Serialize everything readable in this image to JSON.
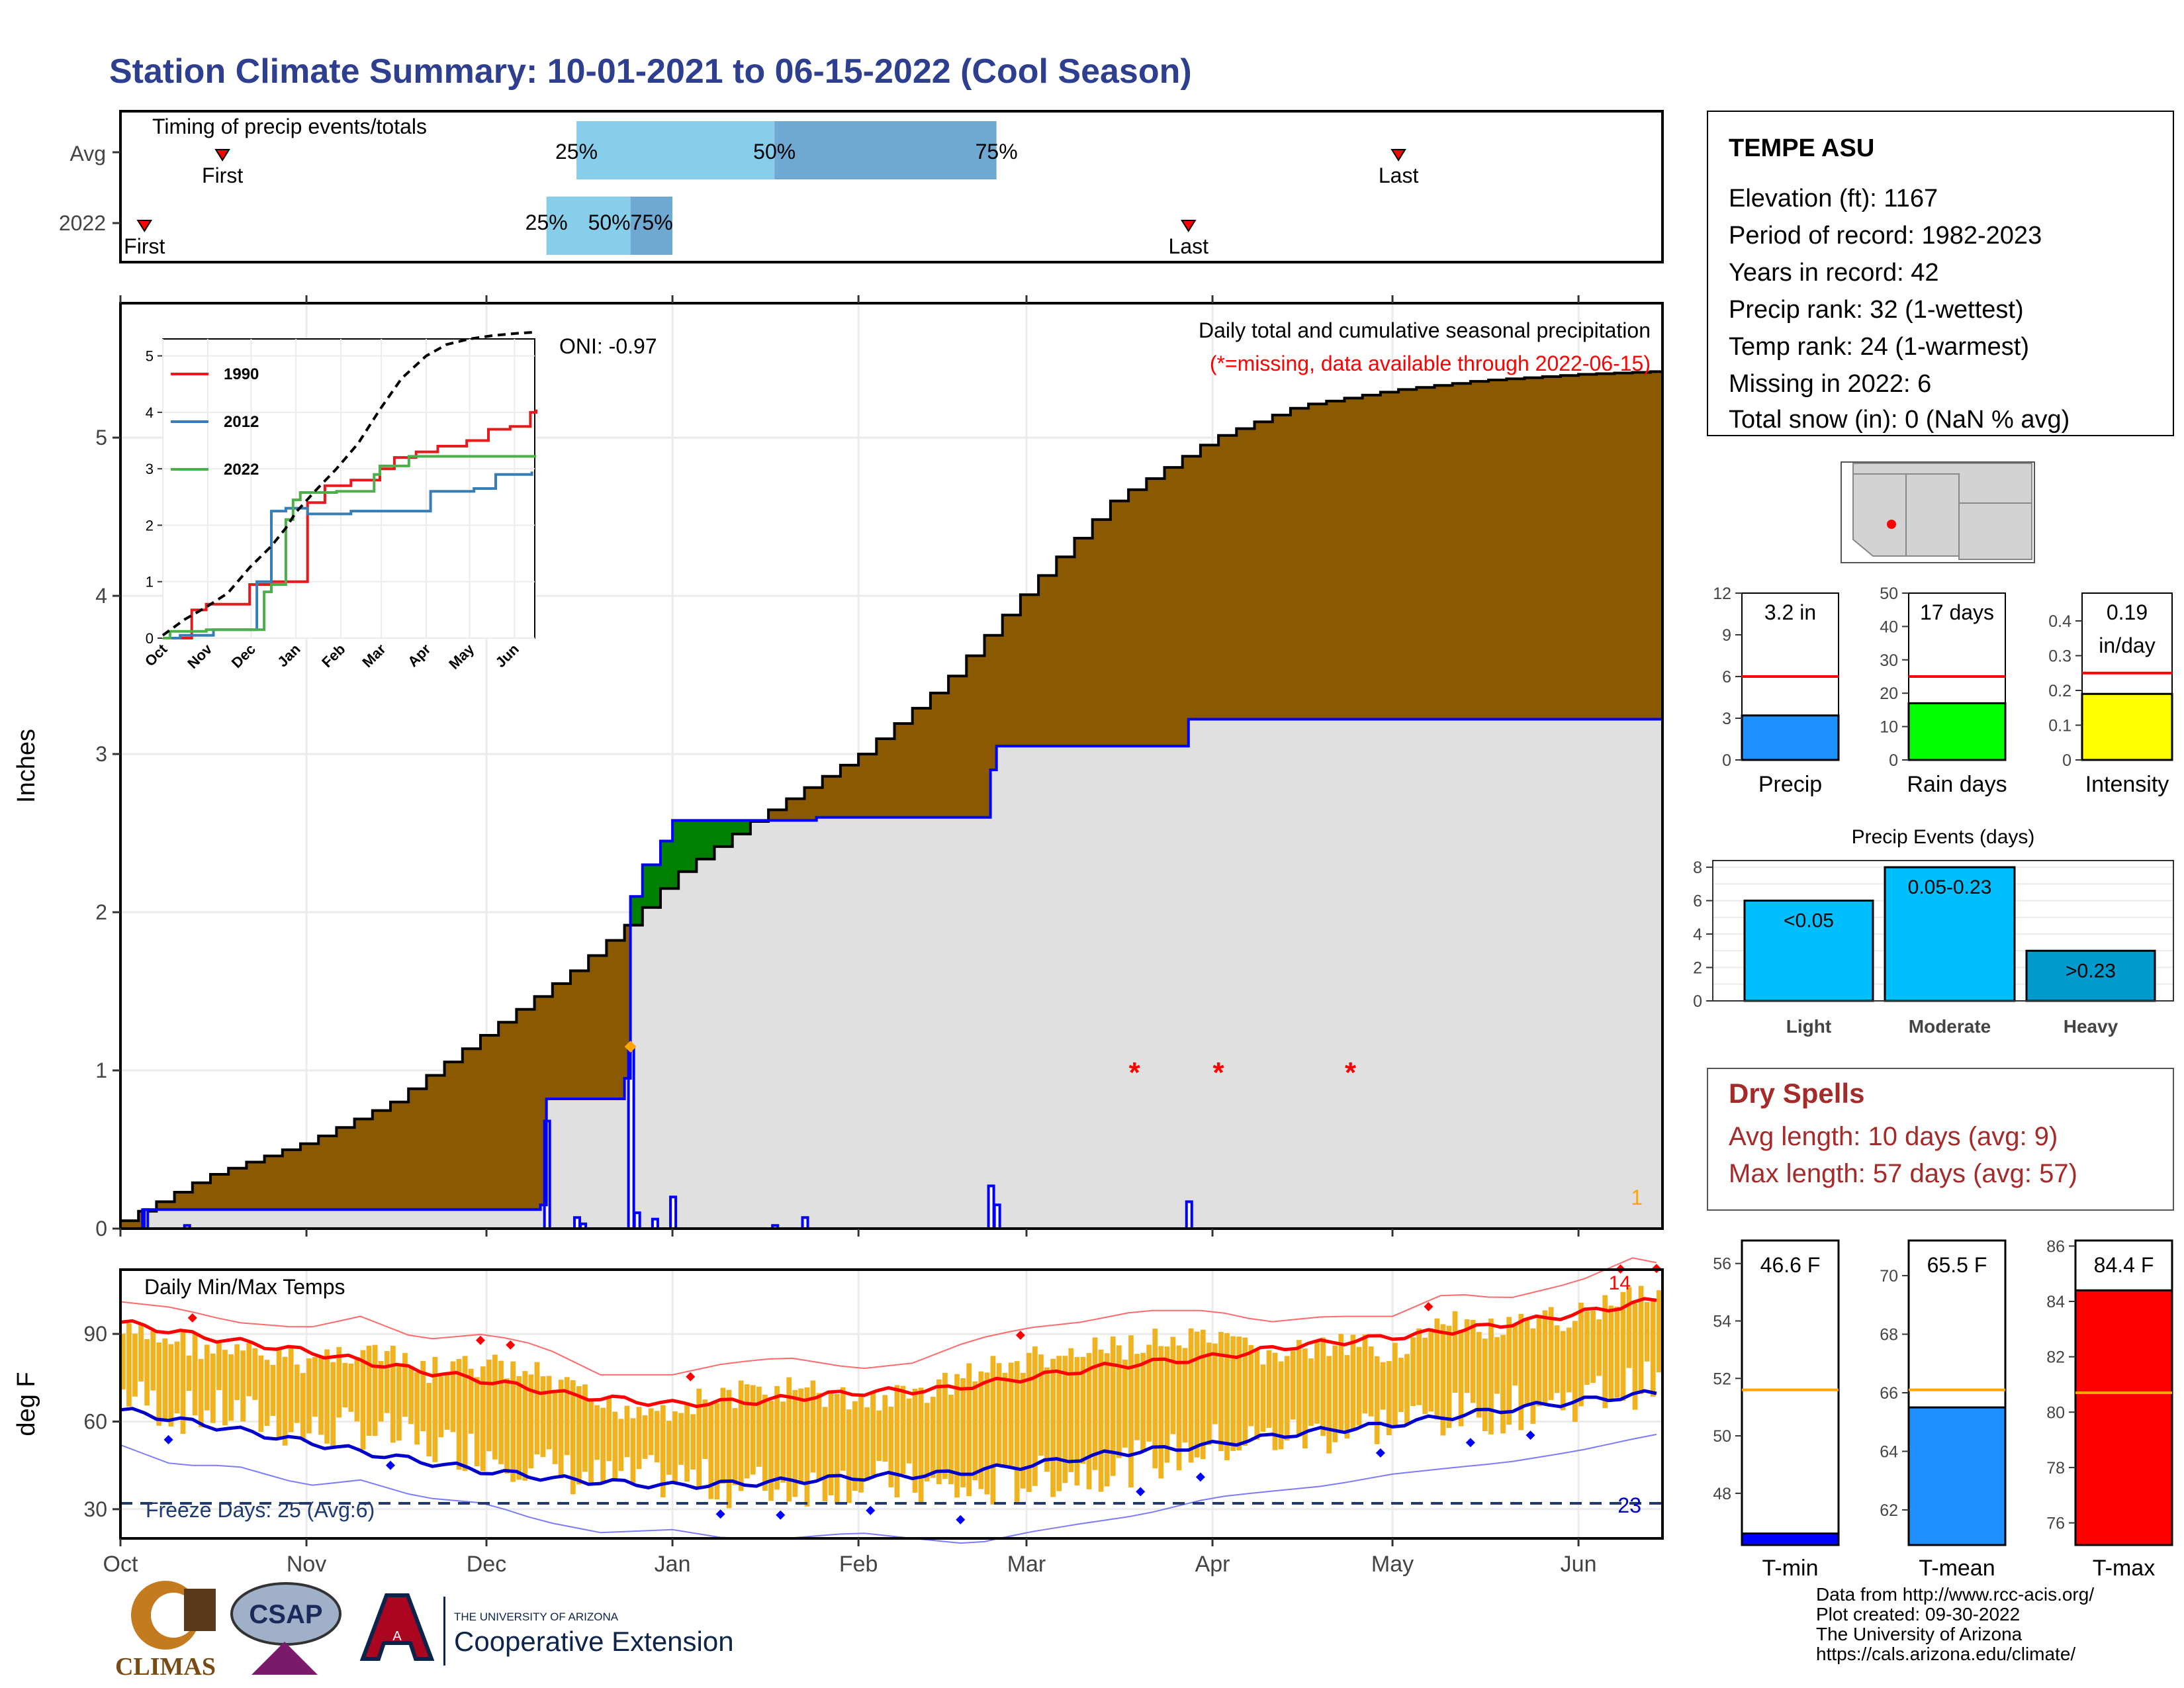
{
  "title": "Station Climate Summary: 10-01-2021 to 06-15-2022 (Cool Season)",
  "colors": {
    "title": "#2e3f8f",
    "precip_fill": "#8b5a00",
    "deficit_fill": "#008000",
    "current_line": "#0000ff",
    "current_area": "#e0e0e0",
    "temp_bar": "#f0b21e",
    "tmax_line": "#ff0000",
    "tmin_line": "#0000cc",
    "dry_spell_text": "#a52a2a",
    "freeze_line": "#1f3a70"
  },
  "timing": {
    "title": "Timing of precip events/totals",
    "rows": [
      {
        "label": "Avg",
        "first_label": "First",
        "last_label": "Last",
        "first": "2021-10-18",
        "last": "2022-05-02",
        "p25": "2021-12-16",
        "p50": "2022-01-18",
        "p75": "2022-02-24",
        "p25_label": "25%",
        "p50_label": "50%",
        "p75_label": "75%"
      },
      {
        "label": "2022",
        "first_label": "First",
        "last_label": "Last",
        "first": "2021-10-05",
        "last": "2022-03-28",
        "p25": "2021-12-11",
        "p50": "2021-12-25",
        "p75": "2022-01-01",
        "p25_label": "25%",
        "p50_label": "50%75%",
        "p75_label": ""
      }
    ]
  },
  "main_chart": {
    "ylabel": "Inches",
    "yticks": [
      0,
      1,
      2,
      3,
      4,
      5
    ],
    "ylim": [
      0,
      5.85
    ],
    "xlim": [
      "2021-10-01",
      "2022-06-15"
    ],
    "month_ticks": [
      "2021-10-01",
      "2021-11-01",
      "2021-12-01",
      "2022-01-01",
      "2022-02-01",
      "2022-03-01",
      "2022-04-01",
      "2022-05-01",
      "2022-06-01"
    ],
    "oni": "ONI: -0.97",
    "annotation": "Daily total and cumulative seasonal precipitation",
    "missing_note": "(*=missing, data available through 2022-06-15)",
    "corner_label": "1",
    "missing_marker": "*",
    "missing_dates": [
      "2022-03-19",
      "2022-04-02",
      "2022-04-24"
    ],
    "extreme_marker_date": "2021-12-25",
    "extreme_marker_value": 1.15
  },
  "chart_data": [
    {
      "type": "area",
      "name_in_image": "cumulative average seasonal precipitation",
      "x": [
        "2021-10-01",
        "2021-10-15",
        "2021-11-01",
        "2021-11-15",
        "2021-12-01",
        "2021-12-15",
        "2021-12-25",
        "2022-01-01",
        "2022-01-15",
        "2022-02-01",
        "2022-02-15",
        "2022-03-01",
        "2022-03-15",
        "2022-04-01",
        "2022-04-15",
        "2022-05-01",
        "2022-05-15",
        "2022-06-01",
        "2022-06-15"
      ],
      "y": [
        0.05,
        0.33,
        0.55,
        0.8,
        1.25,
        1.63,
        1.95,
        2.23,
        2.6,
        3.0,
        3.45,
        4.05,
        4.6,
        5.0,
        5.2,
        5.3,
        5.36,
        5.4,
        5.42
      ]
    },
    {
      "type": "line",
      "name_in_image": "2022 cumulative precipitation",
      "x": [
        "2021-10-01",
        "2021-10-05",
        "2021-12-10",
        "2021-12-11",
        "2021-12-24",
        "2021-12-25",
        "2021-12-27",
        "2021-12-30",
        "2022-01-01",
        "2022-01-20",
        "2022-01-25",
        "2022-02-23",
        "2022-02-24",
        "2022-03-28",
        "2022-06-15"
      ],
      "y": [
        0.0,
        0.12,
        0.15,
        0.82,
        0.95,
        2.1,
        2.3,
        2.45,
        2.58,
        2.58,
        2.6,
        2.9,
        3.05,
        3.22,
        3.22
      ]
    },
    {
      "type": "bar",
      "name_in_image": "2022 daily precipitation",
      "x": [
        "2021-10-05",
        "2021-10-12",
        "2021-12-11",
        "2021-12-16",
        "2021-12-17",
        "2021-12-25",
        "2021-12-26",
        "2021-12-29",
        "2022-01-01",
        "2022-01-18",
        "2022-01-23",
        "2022-02-23",
        "2022-02-24",
        "2022-03-28"
      ],
      "y": [
        0.12,
        0.02,
        0.68,
        0.07,
        0.03,
        1.15,
        0.1,
        0.06,
        0.2,
        0.02,
        0.07,
        0.27,
        0.15,
        0.17
      ]
    },
    {
      "type": "line",
      "title": "",
      "inset": true,
      "x_labels": [
        "Oct",
        "Nov",
        "Dec",
        "Jan",
        "Feb",
        "Mar",
        "Apr",
        "May",
        "Jun"
      ],
      "yticks": [
        0,
        1,
        2,
        3,
        4,
        5
      ],
      "ylim": [
        0,
        5.3
      ],
      "series": [
        {
          "name": "1990",
          "color": "#e41a1c",
          "x": [
            0,
            10,
            20,
            30,
            40,
            55,
            60,
            70,
            75,
            88,
            95,
            100,
            112,
            120,
            130,
            145,
            150,
            160,
            175,
            190,
            210,
            225,
            240,
            254,
            258
          ],
          "y": [
            0,
            0,
            0.5,
            0.6,
            0.6,
            0.6,
            0.95,
            0.95,
            1.0,
            1.0,
            1.0,
            2.4,
            2.7,
            2.7,
            2.8,
            2.8,
            3.0,
            3.2,
            3.3,
            3.4,
            3.5,
            3.7,
            3.75,
            4.0,
            4.05
          ]
        },
        {
          "name": "2012",
          "color": "#377eb8",
          "x": [
            0,
            12,
            20,
            35,
            45,
            55,
            65,
            75,
            85,
            90,
            100,
            120,
            130,
            150,
            175,
            185,
            200,
            215,
            230,
            255
          ],
          "y": [
            0,
            0.05,
            0.05,
            0.15,
            0.15,
            0.15,
            1.0,
            2.25,
            2.3,
            2.3,
            2.2,
            2.2,
            2.25,
            2.25,
            2.25,
            2.6,
            2.6,
            2.65,
            2.9,
            2.95
          ]
        },
        {
          "name": "2022",
          "color": "#4daf4a",
          "x": [
            0,
            5,
            20,
            30,
            40,
            55,
            70,
            75,
            85,
            90,
            95,
            105,
            120,
            146,
            150,
            170,
            180,
            210,
            258
          ],
          "y": [
            0,
            0.12,
            0.12,
            0.15,
            0.15,
            0.15,
            0.82,
            0.95,
            2.1,
            2.45,
            2.58,
            2.58,
            2.6,
            2.9,
            3.05,
            3.22,
            3.22,
            3.22,
            3.22
          ]
        },
        {
          "name": "",
          "color": "#000000",
          "dashed": true,
          "x": [
            0,
            15,
            30,
            45,
            60,
            75,
            85,
            92,
            105,
            120,
            135,
            150,
            165,
            182,
            196,
            212,
            228,
            245,
            258
          ],
          "y": [
            0.05,
            0.33,
            0.55,
            0.8,
            1.25,
            1.63,
            1.95,
            2.23,
            2.6,
            3.0,
            3.45,
            4.05,
            4.6,
            5.0,
            5.2,
            5.3,
            5.36,
            5.4,
            5.42
          ]
        }
      ]
    },
    {
      "type": "bar",
      "title": "",
      "categories": [
        "Precip",
        "Rain days",
        "Intensity"
      ],
      "series": [
        {
          "name": "Precip",
          "value": 3.2,
          "avg": 6.0,
          "label": "3.2 in",
          "yticks": [
            0,
            3,
            6,
            9,
            12
          ],
          "ylim": [
            0,
            12
          ],
          "color": "#1e90ff"
        },
        {
          "name": "Rain days",
          "value": 17,
          "avg": 25,
          "label": "17 days",
          "yticks": [
            0,
            10,
            20,
            30,
            40,
            50
          ],
          "ylim": [
            0,
            50
          ],
          "color": "#00ff00"
        },
        {
          "name": "Intensity",
          "value": 0.19,
          "avg": 0.25,
          "label": "0.19",
          "label2": "in/day",
          "yticks": [
            0.0,
            0.1,
            0.2,
            0.3,
            0.4
          ],
          "ylim": [
            0,
            0.48
          ],
          "color": "#ffff00"
        }
      ]
    },
    {
      "type": "bar",
      "title": "Precip Events (days)",
      "categories": [
        "Light",
        "Moderate",
        "Heavy"
      ],
      "values": [
        6,
        8,
        3
      ],
      "bar_labels": [
        "<0.05",
        "0.05-0.23",
        ">0.23"
      ],
      "colors": [
        "#00bfff",
        "#00bfff",
        "#009acd"
      ],
      "yticks": [
        0,
        2,
        4,
        6,
        8
      ],
      "ylim": [
        0,
        8.4
      ]
    },
    {
      "type": "bar",
      "title": "",
      "categories": [
        "T-min",
        "T-mean",
        "T-max"
      ],
      "series": [
        {
          "name": "T-min",
          "value": 46.6,
          "avg": 51.6,
          "label": "46.6 F",
          "yticks": [
            48,
            50,
            52,
            54,
            56
          ],
          "ylim": [
            46.2,
            56.8
          ],
          "color": "#0000ff"
        },
        {
          "name": "T-mean",
          "value": 65.5,
          "avg": 66.1,
          "label": "65.5 F",
          "yticks": [
            62,
            64,
            66,
            68,
            70
          ],
          "ylim": [
            60.8,
            71.2
          ],
          "color": "#1e90ff"
        },
        {
          "name": "T-max",
          "value": 84.4,
          "avg": 80.7,
          "label": "84.4 F",
          "yticks": [
            76,
            78,
            80,
            82,
            84,
            86
          ],
          "ylim": [
            75.2,
            86.2
          ],
          "color": "#ff0000"
        }
      ]
    }
  ],
  "temps": {
    "title": "Daily Min/Max Temps",
    "ylabel": "deg F",
    "yticks": [
      30,
      60,
      90
    ],
    "ylim": [
      20,
      112
    ],
    "freeze_label": "Freeze Days: 25 (Avg:6)",
    "freeze_value": 32,
    "corner_label_right": "23",
    "corner_label_top": "14",
    "x_labels": [
      "Oct",
      "Nov",
      "Dec",
      "Jan",
      "Feb",
      "Mar",
      "Apr",
      "May",
      "Jun"
    ],
    "avg_max": {
      "x": [
        "2021-10-01",
        "2021-10-15",
        "2021-11-01",
        "2021-11-15",
        "2021-12-01",
        "2021-12-15",
        "2022-01-01",
        "2022-01-15",
        "2022-02-01",
        "2022-02-15",
        "2022-03-01",
        "2022-03-15",
        "2022-04-01",
        "2022-04-15",
        "2022-05-01",
        "2022-05-15",
        "2022-06-01",
        "2022-06-15"
      ],
      "y": [
        94,
        89,
        84,
        79,
        74,
        69,
        66,
        67,
        70,
        71,
        75,
        79,
        82,
        86,
        89,
        92,
        97,
        102
      ]
    },
    "avg_min": {
      "x": [
        "2021-10-01",
        "2021-10-15",
        "2021-11-01",
        "2021-11-15",
        "2021-12-01",
        "2021-12-15",
        "2022-01-01",
        "2022-01-15",
        "2022-02-01",
        "2022-02-15",
        "2022-03-01",
        "2022-03-15",
        "2022-04-01",
        "2022-04-15",
        "2022-05-01",
        "2022-05-15",
        "2022-06-01",
        "2022-06-15"
      ],
      "y": [
        64,
        59,
        53,
        48,
        43,
        40,
        38,
        39,
        41,
        42,
        45,
        49,
        52,
        56,
        59,
        63,
        67,
        70
      ]
    },
    "daily_hi": {
      "x": [
        "2021-10-01",
        "2021-10-10",
        "2021-10-20",
        "2021-11-01",
        "2021-11-10",
        "2021-11-20",
        "2021-12-01",
        "2021-12-10",
        "2021-12-20",
        "2022-01-01",
        "2022-01-10",
        "2022-01-20",
        "2022-02-01",
        "2022-02-10",
        "2022-02-20",
        "2022-03-01",
        "2022-03-10",
        "2022-03-20",
        "2022-04-01",
        "2022-04-10",
        "2022-04-20",
        "2022-05-01",
        "2022-05-10",
        "2022-05-20",
        "2022-06-01",
        "2022-06-10",
        "2022-06-15"
      ],
      "y": [
        95,
        93,
        88,
        86,
        90,
        82,
        84,
        80,
        70,
        70,
        74,
        76,
        72,
        74,
        82,
        86,
        88,
        92,
        92,
        88,
        90,
        90,
        98,
        96,
        102,
        110,
        108
      ]
    },
    "daily_lo": {
      "x": [
        "2021-10-01",
        "2021-10-10",
        "2021-10-20",
        "2021-11-01",
        "2021-11-10",
        "2021-11-20",
        "2021-12-01",
        "2021-12-10",
        "2021-12-20",
        "2022-01-01",
        "2022-01-10",
        "2022-01-20",
        "2022-02-01",
        "2022-02-10",
        "2022-02-20",
        "2022-03-01",
        "2022-03-10",
        "2022-03-20",
        "2022-04-01",
        "2022-04-10",
        "2022-04-20",
        "2022-05-01",
        "2022-05-10",
        "2022-05-20",
        "2022-06-01",
        "2022-06-10",
        "2022-06-15"
      ],
      "y": [
        62,
        55,
        55,
        48,
        50,
        44,
        42,
        36,
        32,
        33,
        30,
        30,
        32,
        30,
        28,
        32,
        35,
        38,
        44,
        46,
        48,
        52,
        54,
        56,
        60,
        64,
        66
      ]
    }
  },
  "station": {
    "name": "TEMPE ASU",
    "lines": [
      "Elevation (ft): 1167",
      "Period of record: 1982-2023",
      "Years in record: 42",
      "Precip rank: 32 (1-wettest)",
      "Temp rank: 24 (1-warmest)",
      "Missing in 2022: 6",
      "Total snow (in): 0 (NaN % avg)"
    ]
  },
  "dry_spells": {
    "title": "Dry Spells",
    "avg_line": "Avg length: 10 days (avg: 9)",
    "max_line": "Max length: 57 days (avg: 57)"
  },
  "logos": {
    "climas": "CLIMAS",
    "csap": "CSAP",
    "ua_small": "THE UNIVERSITY OF ARIZONA",
    "ua_big": "Cooperative Extension",
    "ua_letter": "A"
  },
  "credits": [
    "Data from http://www.rcc-acis.org/",
    "Plot created: 09-30-2022",
    "The University of Arizona",
    "https://cals.arizona.edu/climate/"
  ]
}
